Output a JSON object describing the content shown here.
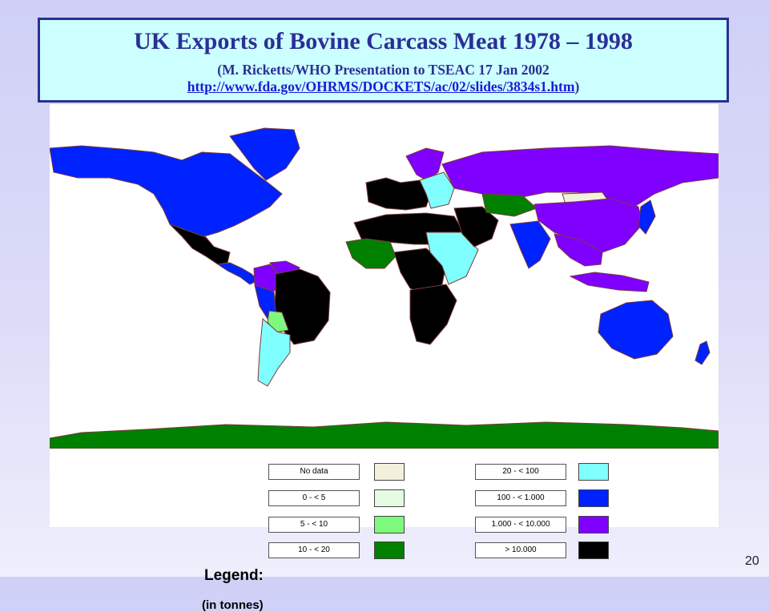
{
  "slide": {
    "title": "UK Exports of Bovine Carcass Meat 1978 – 1998",
    "subtitle_open": "(M. Ricketts/WHO Presentation to TSEAC 17 Jan 2002",
    "source_url": "http://www.fda.gov/OHRMS/DOCKETS/ac/02/slides/3834s1.htm",
    "subtitle_close": ")",
    "page_number": "20"
  },
  "legend": {
    "title": "Legend:",
    "unit": "(in tonnes)",
    "classes": [
      {
        "label": "No data",
        "color": "#f3f1dc"
      },
      {
        "label": "0 - < 5",
        "color": "#e4fbe4"
      },
      {
        "label": "5 - < 10",
        "color": "#7dfa7d"
      },
      {
        "label": "10 - < 20",
        "color": "#008000"
      },
      {
        "label": "20 - < 100",
        "color": "#80ffff"
      },
      {
        "label": "100 - < 1.000",
        "color": "#0022ff"
      },
      {
        "label": "1.000 - < 10.000",
        "color": "#8000ff"
      },
      {
        "label": "> 10.000",
        "color": "#000000"
      }
    ]
  },
  "map": {
    "regions": [
      {
        "name": "North America",
        "class": "100 - < 1.000"
      },
      {
        "name": "Greenland",
        "class": "100 - < 1.000"
      },
      {
        "name": "Mexico",
        "class": "> 10.000"
      },
      {
        "name": "Central America",
        "class": "100 - < 1.000"
      },
      {
        "name": "Colombia",
        "class": "1.000 - < 10.000"
      },
      {
        "name": "Venezuela",
        "class": "1.000 - < 10.000"
      },
      {
        "name": "Brazil",
        "class": "> 10.000"
      },
      {
        "name": "Peru",
        "class": "100 - < 1.000"
      },
      {
        "name": "Bolivia",
        "class": "5 - < 10"
      },
      {
        "name": "Argentina and Chile",
        "class": "20 - < 100"
      },
      {
        "name": "Russia",
        "class": "1.000 - < 10.000"
      },
      {
        "name": "Western Europe",
        "class": "> 10.000"
      },
      {
        "name": "Scandinavia",
        "class": "1.000 - < 10.000"
      },
      {
        "name": "Eastern Europe",
        "class": "20 - < 100"
      },
      {
        "name": "North Africa",
        "class": "> 10.000"
      },
      {
        "name": "West Africa",
        "class": "10 - < 20"
      },
      {
        "name": "Central Africa",
        "class": "> 10.000"
      },
      {
        "name": "East Africa",
        "class": "20 - < 100"
      },
      {
        "name": "Southern Africa",
        "class": "> 10.000"
      },
      {
        "name": "Middle East",
        "class": "> 10.000"
      },
      {
        "name": "Kazakhstan region",
        "class": "10 - < 20"
      },
      {
        "name": "Central Asia",
        "class": "No data"
      },
      {
        "name": "India",
        "class": "100 - < 1.000"
      },
      {
        "name": "China",
        "class": "1.000 - < 10.000"
      },
      {
        "name": "Japan",
        "class": "100 - < 1.000"
      },
      {
        "name": "Southeast Asia",
        "class": "1.000 - < 10.000"
      },
      {
        "name": "Indonesia",
        "class": "1.000 - < 10.000"
      },
      {
        "name": "Australia",
        "class": "100 - < 1.000"
      },
      {
        "name": "New Zealand",
        "class": "100 - < 1.000"
      },
      {
        "name": "Antarctica",
        "class": "10 - < 20"
      }
    ]
  }
}
